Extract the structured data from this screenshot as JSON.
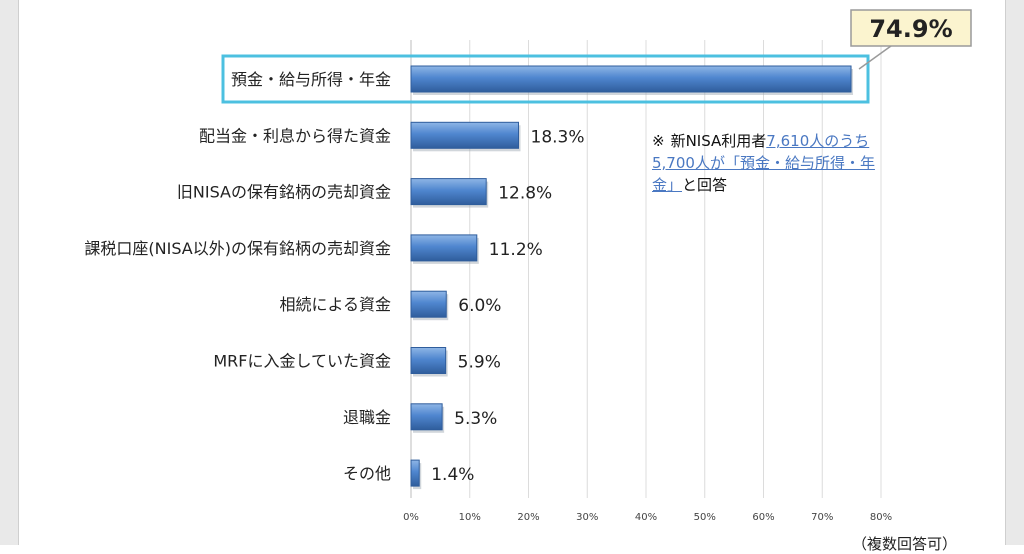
{
  "chart_data": {
    "type": "bar",
    "orientation": "horizontal",
    "categories": [
      "預金・給与所得・年金",
      "配当金・利息から得た資金",
      "旧NISAの保有銘柄の売却資金",
      "課税口座(NISA以外)の保有銘柄の売却資金",
      "相続による資金",
      "MRFに入金していた資金",
      "退職金",
      "その他"
    ],
    "values": [
      74.9,
      18.3,
      12.8,
      11.2,
      6.0,
      5.9,
      5.3,
      1.4
    ],
    "value_labels": [
      "74.9%",
      "18.3%",
      "12.8%",
      "11.2%",
      "6.0%",
      "5.9%",
      "5.3%",
      "1.4%"
    ],
    "highlight_index": 0,
    "xlim": [
      0,
      80
    ],
    "xticks": [
      "0%",
      "10%",
      "20%",
      "30%",
      "40%",
      "50%",
      "60%",
      "70%",
      "80%"
    ],
    "grid": true,
    "colors": {
      "bar": "#4f86cf",
      "bar_light": "#8fb6e6",
      "bar_dark": "#2f5d9c",
      "highlight_box": "#4cc0e0",
      "callout_bg": "#fbf4cf",
      "callout_border": "#9a9a9a",
      "grid": "#dcdcdc"
    }
  },
  "note": {
    "mark": "※",
    "prefix": "新NISA利用者",
    "link1": "7,610人のうち5,700人が「預金・給与所得・年金」",
    "suffix": "と回答"
  },
  "footer_note": "（複数回答可）"
}
